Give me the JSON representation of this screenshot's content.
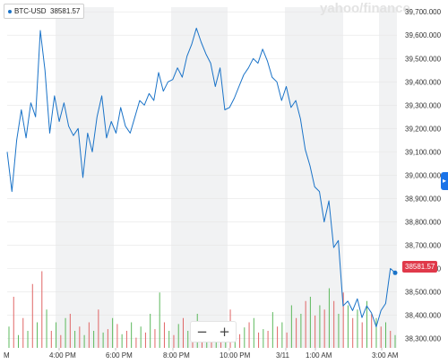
{
  "symbol": {
    "ticker": "BTC-USD",
    "price": "38581.57"
  },
  "watermark": "yahoo/finance",
  "zoom": {
    "minus": "−",
    "plus": "+"
  },
  "expand_icon": "chevron-right-icon",
  "colors": {
    "line": "#1a73c8",
    "up_volume": "#5cb85c",
    "down_volume": "#e06666",
    "band": "#f1f2f3",
    "grid": "#e6e6e6",
    "flag": "#e0394a"
  },
  "chart_data": {
    "type": "line",
    "x_ticks": [
      "4:00 PM",
      "6:00 PM",
      "8:00 PM",
      "10:00 PM",
      "3/11",
      "1:00 AM",
      "3:00 AM"
    ],
    "x_tick_left_partial": "M",
    "y_ticks": [
      38300,
      38400,
      38500,
      38600,
      38700,
      38800,
      38900,
      39000,
      39100,
      39200,
      39300,
      39400,
      39500,
      39600,
      39700
    ],
    "ylim": [
      38260,
      39720
    ],
    "last_price": "38581.57",
    "price_series": [
      39100,
      38930,
      39150,
      39280,
      39160,
      39310,
      39250,
      39620,
      39450,
      39180,
      39340,
      39230,
      39310,
      39210,
      39170,
      39200,
      38990,
      39180,
      39100,
      39250,
      39340,
      39160,
      39230,
      39180,
      39290,
      39210,
      39180,
      39250,
      39320,
      39300,
      39350,
      39320,
      39440,
      39360,
      39400,
      39410,
      39460,
      39420,
      39510,
      39560,
      39630,
      39570,
      39520,
      39480,
      39380,
      39460,
      39280,
      39290,
      39330,
      39380,
      39430,
      39460,
      39500,
      39480,
      39540,
      39490,
      39420,
      39400,
      39320,
      39380,
      39290,
      39320,
      39240,
      39110,
      39040,
      38950,
      38930,
      38800,
      38890,
      38690,
      38720,
      38440,
      38460,
      38420,
      38470,
      38390,
      38440,
      38410,
      38350,
      38420,
      38450,
      38600,
      38581.57
    ],
    "volume_series": [
      {
        "v": 0.25,
        "up": true
      },
      {
        "v": 0.6,
        "up": false
      },
      {
        "v": 0.15,
        "up": true
      },
      {
        "v": 0.35,
        "up": false
      },
      {
        "v": 0.2,
        "up": true
      },
      {
        "v": 0.75,
        "up": false
      },
      {
        "v": 0.3,
        "up": true
      },
      {
        "v": 0.9,
        "up": false
      },
      {
        "v": 0.45,
        "up": true
      },
      {
        "v": 0.2,
        "up": false
      },
      {
        "v": 0.3,
        "up": true
      },
      {
        "v": 0.15,
        "up": false
      },
      {
        "v": 0.35,
        "up": true
      },
      {
        "v": 0.4,
        "up": false
      },
      {
        "v": 0.2,
        "up": true
      },
      {
        "v": 0.25,
        "up": false
      },
      {
        "v": 0.15,
        "up": true
      },
      {
        "v": 0.3,
        "up": false
      },
      {
        "v": 0.2,
        "up": true
      },
      {
        "v": 0.45,
        "up": false
      },
      {
        "v": 0.18,
        "up": true
      },
      {
        "v": 0.22,
        "up": false
      },
      {
        "v": 0.35,
        "up": true
      },
      {
        "v": 0.28,
        "up": false
      },
      {
        "v": 0.16,
        "up": true
      },
      {
        "v": 0.2,
        "up": false
      },
      {
        "v": 0.3,
        "up": true
      },
      {
        "v": 0.12,
        "up": false
      },
      {
        "v": 0.25,
        "up": true
      },
      {
        "v": 0.18,
        "up": false
      },
      {
        "v": 0.4,
        "up": true
      },
      {
        "v": 0.22,
        "up": false
      },
      {
        "v": 0.65,
        "up": true
      },
      {
        "v": 0.3,
        "up": false
      },
      {
        "v": 0.2,
        "up": true
      },
      {
        "v": 0.15,
        "up": false
      },
      {
        "v": 0.28,
        "up": true
      },
      {
        "v": 0.35,
        "up": false
      },
      {
        "v": 0.2,
        "up": true
      },
      {
        "v": 0.25,
        "up": false
      },
      {
        "v": 0.4,
        "up": true
      },
      {
        "v": 0.18,
        "up": false
      },
      {
        "v": 0.22,
        "up": true
      },
      {
        "v": 0.3,
        "up": false
      },
      {
        "v": 0.15,
        "up": true
      },
      {
        "v": 0.2,
        "up": false
      },
      {
        "v": 0.3,
        "up": true
      },
      {
        "v": 0.45,
        "up": false
      },
      {
        "v": 0.2,
        "up": true
      },
      {
        "v": 0.16,
        "up": false
      },
      {
        "v": 0.24,
        "up": true
      },
      {
        "v": 0.3,
        "up": false
      },
      {
        "v": 0.35,
        "up": true
      },
      {
        "v": 0.18,
        "up": false
      },
      {
        "v": 0.22,
        "up": true
      },
      {
        "v": 0.2,
        "up": false
      },
      {
        "v": 0.42,
        "up": true
      },
      {
        "v": 0.25,
        "up": false
      },
      {
        "v": 0.3,
        "up": true
      },
      {
        "v": 0.18,
        "up": false
      },
      {
        "v": 0.5,
        "up": true
      },
      {
        "v": 0.35,
        "up": false
      },
      {
        "v": 0.4,
        "up": true
      },
      {
        "v": 0.55,
        "up": false
      },
      {
        "v": 0.6,
        "up": true
      },
      {
        "v": 0.38,
        "up": false
      },
      {
        "v": 0.5,
        "up": true
      },
      {
        "v": 0.45,
        "up": false
      },
      {
        "v": 0.7,
        "up": true
      },
      {
        "v": 0.55,
        "up": false
      },
      {
        "v": 0.4,
        "up": true
      },
      {
        "v": 0.65,
        "up": false
      },
      {
        "v": 0.5,
        "up": true
      },
      {
        "v": 0.35,
        "up": false
      },
      {
        "v": 0.45,
        "up": true
      },
      {
        "v": 0.3,
        "up": false
      },
      {
        "v": 0.55,
        "up": true
      },
      {
        "v": 0.4,
        "up": false
      },
      {
        "v": 0.35,
        "up": true
      },
      {
        "v": 0.25,
        "up": false
      },
      {
        "v": 0.3,
        "up": true
      },
      {
        "v": 0.2,
        "up": false
      },
      {
        "v": 0.15,
        "up": true
      }
    ]
  }
}
